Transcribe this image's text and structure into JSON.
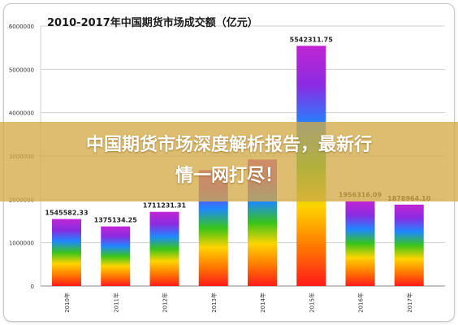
{
  "banner": {
    "line1": "中国期货市场深度解析报告，最新行",
    "line2": "情一网打尽！"
  },
  "chart_data": {
    "type": "bar",
    "title": "2010-2017年中国期货市场成交额（亿元）",
    "categories": [
      "2010年",
      "2011年",
      "2012年",
      "2013年",
      "2014年",
      "2015年",
      "2016年",
      "2017年"
    ],
    "values": [
      1545582.33,
      1375134.25,
      1711231.31,
      2674745.0,
      2919870.0,
      5542311.75,
      1956316.09,
      1878964.1
    ],
    "data_labels": [
      "1545582.33",
      "1375134.25",
      "1711231.31",
      "",
      "",
      "5542311.75",
      "1956316.09",
      "1878964.10"
    ],
    "y_ticks": [
      "0",
      "1000000",
      "2000000",
      "3000000",
      "4000000",
      "5000000",
      "6000000"
    ],
    "ylim": [
      0,
      6000000
    ],
    "grid": true,
    "bar_fill": "rainbow-gradient",
    "colors": {
      "grid": "#d0d0d0",
      "axis": "#888888",
      "tick_text": "#333333",
      "label_text": "#222222",
      "rainbow": [
        "#ff1a1a",
        "#ff7a00",
        "#ffd400",
        "#39c41a",
        "#1e88ff",
        "#8a2be2",
        "#c026d3"
      ]
    }
  }
}
